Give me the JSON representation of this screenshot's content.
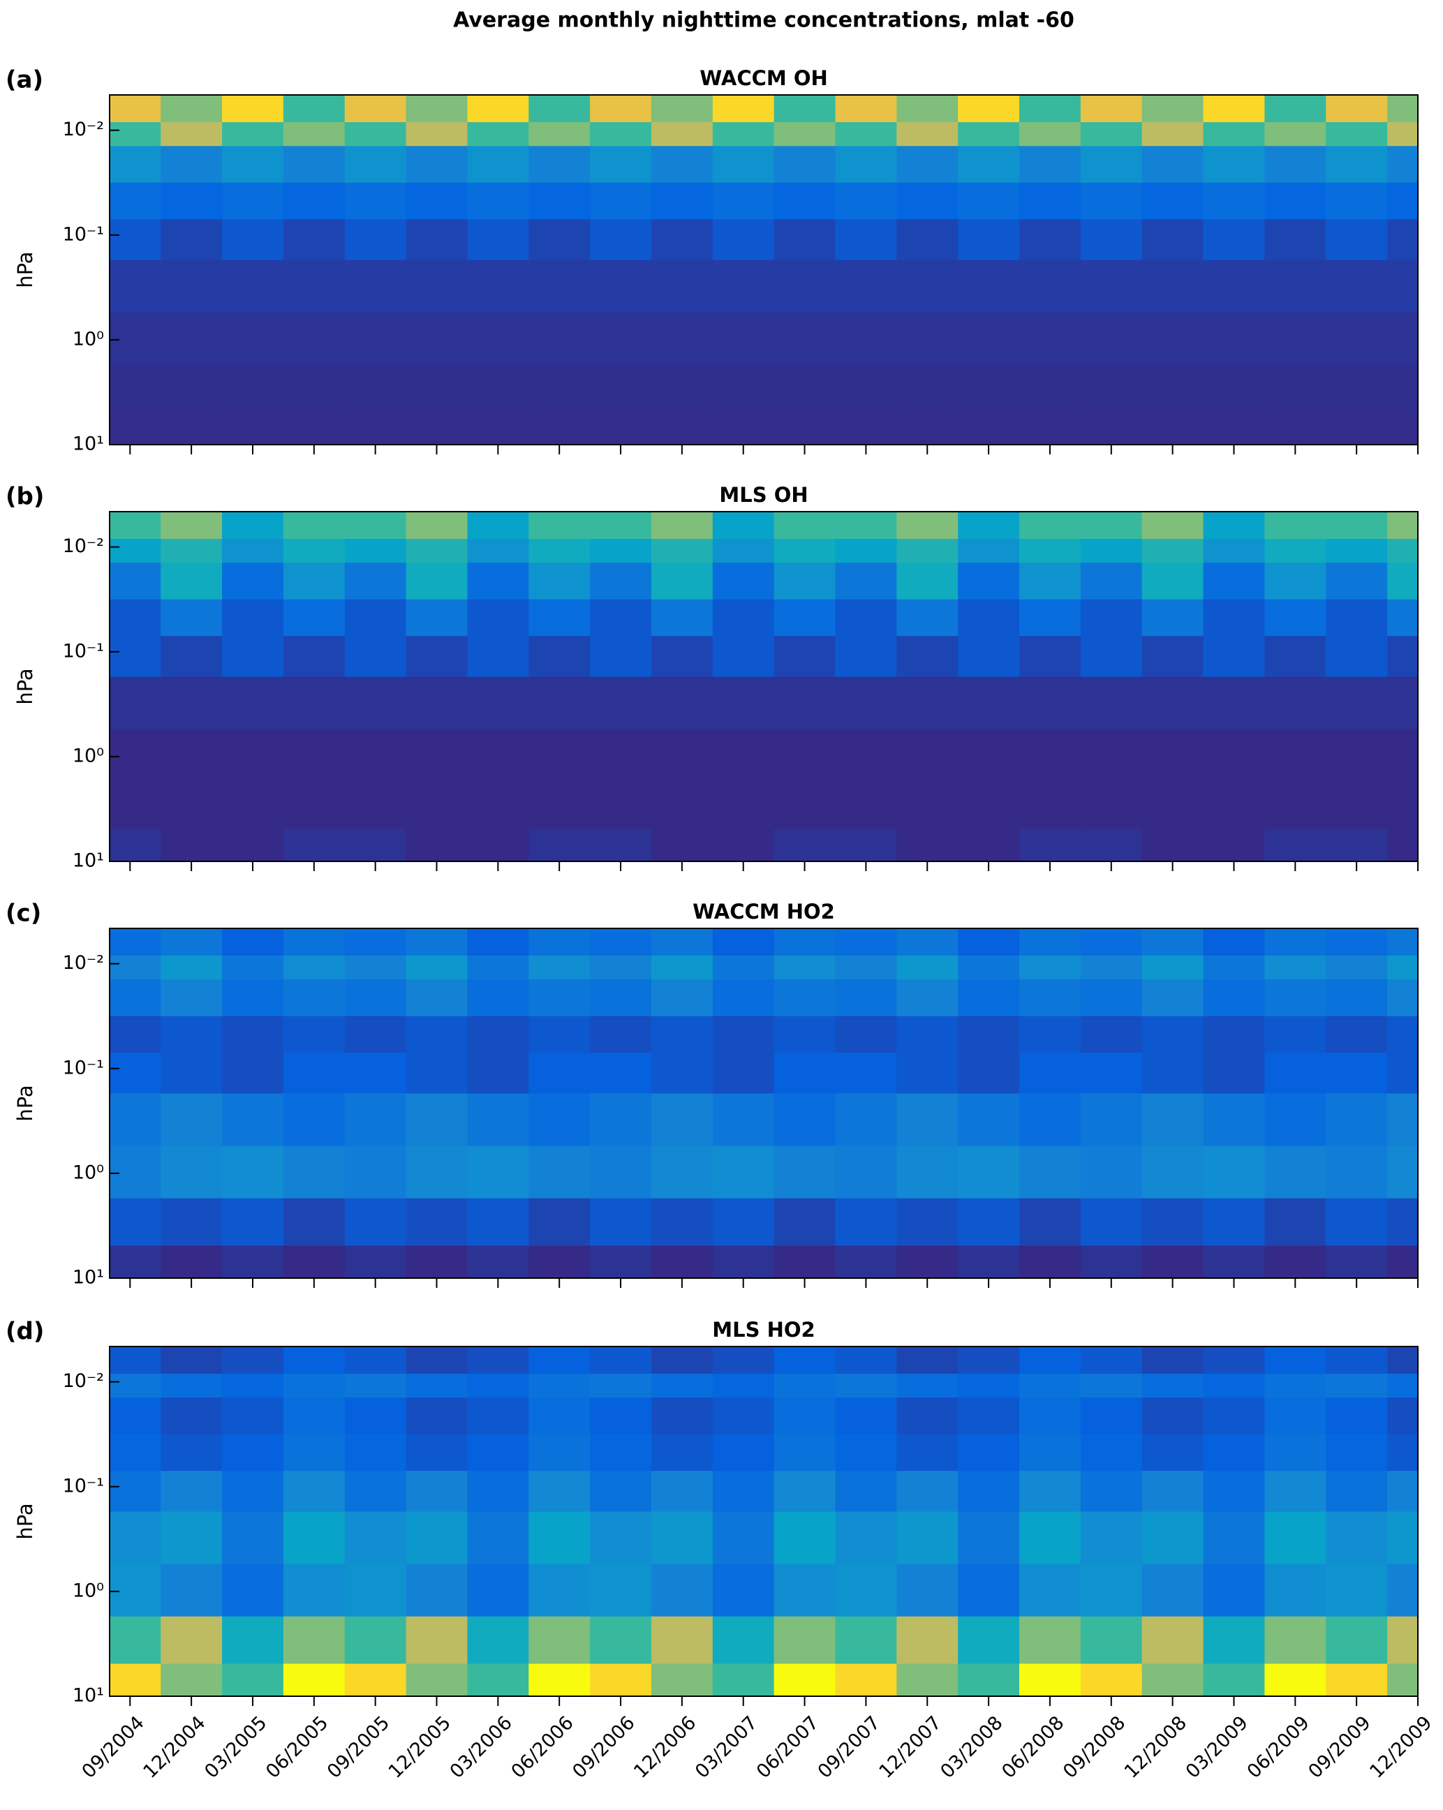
{
  "title": "Average monthly nighttime concentrations, mlat -60",
  "chart_data": [
    {
      "type": "contour",
      "label": "(a)",
      "title": "WACCM OH",
      "ylabel": "hPa",
      "x": [
        "09/2004",
        "12/2004",
        "03/2005",
        "06/2005",
        "09/2005",
        "12/2005",
        "03/2006",
        "06/2006",
        "09/2006",
        "12/2006",
        "03/2007",
        "06/2007",
        "09/2007",
        "12/2007",
        "03/2008",
        "06/2008",
        "09/2008",
        "12/2008",
        "03/2009",
        "06/2009",
        "09/2009",
        "12/2009"
      ],
      "y": [
        0.007,
        0.01,
        0.02,
        0.05,
        0.1,
        0.3,
        1,
        3,
        8
      ],
      "z": [
        [
          4,
          3,
          4.5,
          2.5,
          4,
          3,
          4.5,
          2.5,
          4,
          3,
          4.5,
          2.5,
          4,
          3,
          4.5,
          2.5,
          4,
          3,
          4.5,
          2.5,
          4,
          3
        ],
        [
          2.5,
          3.5,
          2.5,
          3,
          2.5,
          3.5,
          2.5,
          3,
          2.5,
          3.5,
          2.5,
          3,
          2.5,
          3.5,
          2.5,
          3,
          2.5,
          3.5,
          2.5,
          3,
          2.5,
          3.5
        ],
        [
          1.5,
          1.2,
          1.5,
          1.2,
          1.5,
          1.2,
          1.5,
          1.2,
          1.5,
          1.2,
          1.5,
          1.2,
          1.5,
          1.2,
          1.5,
          1.2,
          1.5,
          1.2,
          1.5,
          1.2,
          1.5,
          1.2
        ],
        [
          0.8,
          0.7,
          0.8,
          0.7,
          0.8,
          0.7,
          0.8,
          0.7,
          0.8,
          0.7,
          0.8,
          0.7,
          0.8,
          0.7,
          0.8,
          0.7,
          0.8,
          0.7,
          0.8,
          0.7,
          0.8,
          0.7
        ],
        [
          0.5,
          0.3,
          0.5,
          0.3,
          0.5,
          0.3,
          0.5,
          0.3,
          0.5,
          0.3,
          0.5,
          0.3,
          0.5,
          0.3,
          0.5,
          0.3,
          0.5,
          0.3,
          0.5,
          0.3,
          0.5,
          0.3
        ],
        [
          0.2,
          0.2,
          0.2,
          0.2,
          0.2,
          0.2,
          0.2,
          0.2,
          0.2,
          0.2,
          0.2,
          0.2,
          0.2,
          0.2,
          0.2,
          0.2,
          0.2,
          0.2,
          0.2,
          0.2,
          0.2,
          0.2
        ],
        [
          0.1,
          0.1,
          0.1,
          0.1,
          0.1,
          0.1,
          0.1,
          0.1,
          0.1,
          0.1,
          0.1,
          0.1,
          0.1,
          0.1,
          0.1,
          0.1,
          0.1,
          0.1,
          0.1,
          0.1,
          0.1,
          0.1
        ],
        [
          0.05,
          0.05,
          0.05,
          0.05,
          0.05,
          0.05,
          0.05,
          0.05,
          0.05,
          0.05,
          0.05,
          0.05,
          0.05,
          0.05,
          0.05,
          0.05,
          0.05,
          0.05,
          0.05,
          0.05,
          0.05,
          0.05
        ],
        [
          0.02,
          0.02,
          0.02,
          0.02,
          0.02,
          0.02,
          0.02,
          0.02,
          0.02,
          0.02,
          0.02,
          0.02,
          0.02,
          0.02,
          0.02,
          0.02,
          0.02,
          0.02,
          0.02,
          0.02,
          0.02,
          0.02
        ]
      ],
      "xlim": [
        "08/2004",
        "12/2009"
      ],
      "ylim": [
        0.0046,
        10
      ],
      "y_reversed": true,
      "yscale": "log",
      "yticks": [
        {
          "value": 0.01,
          "label": "10⁻²"
        },
        {
          "value": 0.1,
          "label": "10⁻¹"
        },
        {
          "value": 1,
          "label": "10⁰"
        },
        {
          "value": 10,
          "label": "10¹"
        }
      ],
      "xticks": [
        "09/2004",
        "12/2004",
        "03/2005",
        "06/2005",
        "09/2005",
        "12/2005",
        "03/2006",
        "06/2006",
        "09/2006",
        "12/2006",
        "03/2007",
        "06/2007",
        "09/2007",
        "12/2007",
        "03/2008",
        "06/2008",
        "09/2008",
        "12/2008",
        "03/2009",
        "06/2009",
        "09/2009",
        "12/2009"
      ],
      "xtick_labels": false,
      "clim": [
        0,
        5
      ],
      "colormap": "parula"
    },
    {
      "type": "contour",
      "label": "(b)",
      "title": "MLS OH",
      "ylabel": "hPa",
      "x": [
        "09/2004",
        "12/2004",
        "03/2005",
        "06/2005",
        "09/2005",
        "12/2005",
        "03/2006",
        "06/2006",
        "09/2006",
        "12/2006",
        "03/2007",
        "06/2007",
        "09/2007",
        "12/2007",
        "03/2008",
        "06/2008",
        "09/2008",
        "12/2008",
        "03/2009",
        "06/2009",
        "09/2009",
        "12/2009"
      ],
      "y": [
        0.007,
        0.01,
        0.02,
        0.05,
        0.1,
        0.3,
        1,
        3,
        8
      ],
      "z": [
        [
          2.5,
          3,
          1.8,
          2.5,
          2.5,
          3,
          1.8,
          2.5,
          2.5,
          3,
          1.8,
          2.5,
          2.5,
          3,
          1.8,
          2.5,
          2.5,
          3,
          1.8,
          2.5,
          2.5,
          3
        ],
        [
          1.8,
          2.2,
          1.5,
          2,
          1.8,
          2.2,
          1.5,
          2,
          1.8,
          2.2,
          1.5,
          2,
          1.8,
          2.2,
          1.5,
          2,
          1.8,
          2.2,
          1.5,
          2,
          1.8,
          2.2
        ],
        [
          1,
          2,
          0.8,
          1.5,
          1,
          2,
          0.8,
          1.5,
          1,
          2,
          0.8,
          1.5,
          1,
          2,
          0.8,
          1.5,
          1,
          2,
          0.8,
          1.5,
          1,
          2
        ],
        [
          0.5,
          1,
          0.5,
          0.8,
          0.5,
          1,
          0.5,
          0.8,
          0.5,
          1,
          0.5,
          0.8,
          0.5,
          1,
          0.5,
          0.8,
          0.5,
          1,
          0.5,
          0.8,
          0.5,
          1
        ],
        [
          0.5,
          0.3,
          0.5,
          0.3,
          0.5,
          0.3,
          0.5,
          0.3,
          0.5,
          0.3,
          0.5,
          0.3,
          0.5,
          0.3,
          0.5,
          0.3,
          0.5,
          0.3,
          0.5,
          0.3,
          0.5,
          0.3
        ],
        [
          0.1,
          0.1,
          0.1,
          0.1,
          0.1,
          0.1,
          0.1,
          0.1,
          0.1,
          0.1,
          0.1,
          0.1,
          0.1,
          0.1,
          0.1,
          0.1,
          0.1,
          0.1,
          0.1,
          0.1,
          0.1,
          0.1
        ],
        [
          0,
          0,
          0,
          0,
          0,
          0,
          0,
          0,
          0,
          0,
          0,
          0,
          0,
          0,
          0,
          0,
          0,
          0,
          0,
          0,
          0,
          0
        ],
        [
          0,
          0,
          0,
          0,
          0,
          0,
          0,
          0,
          0,
          0,
          0,
          0,
          0,
          0,
          0,
          0,
          0,
          0,
          0,
          0,
          0,
          0
        ],
        [
          0.1,
          0,
          0,
          0.1,
          0.1,
          0,
          0,
          0.1,
          0.1,
          0,
          0,
          0.1,
          0.1,
          0,
          0,
          0.1,
          0.1,
          0,
          0,
          0.1,
          0.1,
          0
        ]
      ],
      "xlim": [
        "08/2004",
        "12/2009"
      ],
      "ylim": [
        0.0046,
        10
      ],
      "y_reversed": true,
      "yscale": "log",
      "yticks": [
        {
          "value": 0.01,
          "label": "10⁻²"
        },
        {
          "value": 0.1,
          "label": "10⁻¹"
        },
        {
          "value": 1,
          "label": "10⁰"
        },
        {
          "value": 10,
          "label": "10¹"
        }
      ],
      "xticks": [
        "09/2004",
        "12/2004",
        "03/2005",
        "06/2005",
        "09/2005",
        "12/2005",
        "03/2006",
        "06/2006",
        "09/2006",
        "12/2006",
        "03/2007",
        "06/2007",
        "09/2007",
        "12/2007",
        "03/2008",
        "06/2008",
        "09/2008",
        "12/2008",
        "03/2009",
        "06/2009",
        "09/2009",
        "12/2009"
      ],
      "xtick_labels": false,
      "clim": [
        0,
        5
      ],
      "colormap": "parula"
    },
    {
      "type": "contour",
      "label": "(c)",
      "title": "WACCM HO2",
      "ylabel": "hPa",
      "x": [
        "09/2004",
        "12/2004",
        "03/2005",
        "06/2005",
        "09/2005",
        "12/2005",
        "03/2006",
        "06/2006",
        "09/2006",
        "12/2006",
        "03/2007",
        "06/2007",
        "09/2007",
        "12/2007",
        "03/2008",
        "06/2008",
        "09/2008",
        "12/2008",
        "03/2009",
        "06/2009",
        "09/2009",
        "12/2009"
      ],
      "y": [
        0.007,
        0.01,
        0.02,
        0.05,
        0.1,
        0.3,
        1,
        3,
        8
      ],
      "z": [
        [
          0.8,
          1,
          0.6,
          0.9,
          0.8,
          1,
          0.6,
          0.9,
          0.8,
          1,
          0.6,
          0.9,
          0.8,
          1,
          0.6,
          0.9,
          0.8,
          1,
          0.6,
          0.9,
          0.8,
          1
        ],
        [
          1.2,
          1.6,
          1,
          1.4,
          1.2,
          1.6,
          1,
          1.4,
          1.2,
          1.6,
          1,
          1.4,
          1.2,
          1.6,
          1,
          1.4,
          1.2,
          1.6,
          1,
          1.4,
          1.2,
          1.6
        ],
        [
          0.9,
          1.2,
          0.8,
          1,
          0.9,
          1.2,
          0.8,
          1,
          0.9,
          1.2,
          0.8,
          1,
          0.9,
          1.2,
          0.8,
          1,
          0.9,
          1.2,
          0.8,
          1,
          0.9,
          1.2
        ],
        [
          0.4,
          0.5,
          0.4,
          0.5,
          0.4,
          0.5,
          0.4,
          0.5,
          0.4,
          0.5,
          0.4,
          0.5,
          0.4,
          0.5,
          0.4,
          0.5,
          0.4,
          0.5,
          0.4,
          0.5,
          0.4,
          0.5
        ],
        [
          0.6,
          0.5,
          0.4,
          0.6,
          0.6,
          0.5,
          0.4,
          0.6,
          0.6,
          0.5,
          0.4,
          0.6,
          0.6,
          0.5,
          0.4,
          0.6,
          0.6,
          0.5,
          0.4,
          0.6,
          0.6,
          0.5
        ],
        [
          1,
          1.2,
          1,
          0.8,
          1,
          1.2,
          1,
          0.8,
          1,
          1.2,
          1,
          0.8,
          1,
          1.2,
          1,
          0.8,
          1,
          1.2,
          1,
          0.8,
          1,
          1.2
        ],
        [
          1.1,
          1.3,
          1.4,
          1.2,
          1.1,
          1.3,
          1.4,
          1.2,
          1.1,
          1.3,
          1.4,
          1.2,
          1.1,
          1.3,
          1.4,
          1.2,
          1.1,
          1.3,
          1.4,
          1.2,
          1.1,
          1.3
        ],
        [
          0.5,
          0.4,
          0.5,
          0.3,
          0.5,
          0.4,
          0.5,
          0.3,
          0.5,
          0.4,
          0.5,
          0.3,
          0.5,
          0.4,
          0.5,
          0.3,
          0.5,
          0.4,
          0.5,
          0.3,
          0.5,
          0.4
        ],
        [
          0.1,
          0,
          0.1,
          0,
          0.1,
          0,
          0.1,
          0,
          0.1,
          0,
          0.1,
          0,
          0.1,
          0,
          0.1,
          0,
          0.1,
          0,
          0.1,
          0,
          0.1,
          0
        ]
      ],
      "xlim": [
        "08/2004",
        "12/2009"
      ],
      "ylim": [
        0.0046,
        10
      ],
      "y_reversed": true,
      "yscale": "log",
      "yticks": [
        {
          "value": 0.01,
          "label": "10⁻²"
        },
        {
          "value": 0.1,
          "label": "10⁻¹"
        },
        {
          "value": 1,
          "label": "10⁰"
        },
        {
          "value": 10,
          "label": "10¹"
        }
      ],
      "xticks": [
        "09/2004",
        "12/2004",
        "03/2005",
        "06/2005",
        "09/2005",
        "12/2005",
        "03/2006",
        "06/2006",
        "09/2006",
        "12/2006",
        "03/2007",
        "06/2007",
        "09/2007",
        "12/2007",
        "03/2008",
        "06/2008",
        "09/2008",
        "12/2008",
        "03/2009",
        "06/2009",
        "09/2009",
        "12/2009"
      ],
      "xtick_labels": false,
      "clim": [
        0,
        5
      ],
      "colormap": "parula"
    },
    {
      "type": "contour",
      "label": "(d)",
      "title": "MLS HO2",
      "ylabel": "hPa",
      "x": [
        "09/2004",
        "12/2004",
        "03/2005",
        "06/2005",
        "09/2005",
        "12/2005",
        "03/2006",
        "06/2006",
        "09/2006",
        "12/2006",
        "03/2007",
        "06/2007",
        "09/2007",
        "12/2007",
        "03/2008",
        "06/2008",
        "09/2008",
        "12/2008",
        "03/2009",
        "06/2009",
        "09/2009",
        "12/2009"
      ],
      "y": [
        0.007,
        0.01,
        0.02,
        0.05,
        0.1,
        0.3,
        1,
        3,
        8
      ],
      "z": [
        [
          0.5,
          0.3,
          0.4,
          0.6,
          0.5,
          0.3,
          0.4,
          0.6,
          0.5,
          0.3,
          0.4,
          0.6,
          0.5,
          0.3,
          0.4,
          0.6,
          0.5,
          0.3,
          0.4,
          0.6,
          0.5,
          0.3
        ],
        [
          1,
          0.8,
          0.7,
          0.9,
          1,
          0.8,
          0.7,
          0.9,
          1,
          0.8,
          0.7,
          0.9,
          1,
          0.8,
          0.7,
          0.9,
          1,
          0.8,
          0.7,
          0.9,
          1,
          0.8
        ],
        [
          0.6,
          0.4,
          0.5,
          0.8,
          0.6,
          0.4,
          0.5,
          0.8,
          0.6,
          0.4,
          0.5,
          0.8,
          0.6,
          0.4,
          0.5,
          0.8,
          0.6,
          0.4,
          0.5,
          0.8,
          0.6,
          0.4
        ],
        [
          0.7,
          0.5,
          0.6,
          0.9,
          0.7,
          0.5,
          0.6,
          0.9,
          0.7,
          0.5,
          0.6,
          0.9,
          0.7,
          0.5,
          0.6,
          0.9,
          0.7,
          0.5,
          0.6,
          0.9,
          0.7,
          0.5
        ],
        [
          0.9,
          1.2,
          0.8,
          1.3,
          0.9,
          1.2,
          0.8,
          1.3,
          0.9,
          1.2,
          0.8,
          1.3,
          0.9,
          1.2,
          0.8,
          1.3,
          0.9,
          1.2,
          0.8,
          1.3,
          0.9,
          1.2
        ],
        [
          1.4,
          1.6,
          1,
          1.8,
          1.4,
          1.6,
          1,
          1.8,
          1.4,
          1.6,
          1,
          1.8,
          1.4,
          1.6,
          1,
          1.8,
          1.4,
          1.6,
          1,
          1.8,
          1.4,
          1.6
        ],
        [
          1.5,
          1.2,
          0.8,
          1.4,
          1.5,
          1.2,
          0.8,
          1.4,
          1.5,
          1.2,
          0.8,
          1.4,
          1.5,
          1.2,
          0.8,
          1.4,
          1.5,
          1.2,
          0.8,
          1.4,
          1.5,
          1.2
        ],
        [
          2.5,
          3.5,
          2,
          3,
          2.5,
          3.5,
          2,
          3,
          2.5,
          3.5,
          2,
          3,
          2.5,
          3.5,
          2,
          3,
          2.5,
          3.5,
          2,
          3,
          2.5,
          3.5
        ],
        [
          4.5,
          3,
          2.5,
          5,
          4.5,
          3,
          2.5,
          5,
          4.5,
          3,
          2.5,
          5,
          4.5,
          3,
          2.5,
          5,
          4.5,
          3,
          2.5,
          5,
          4.5,
          3
        ]
      ],
      "xlim": [
        "08/2004",
        "12/2009"
      ],
      "ylim": [
        0.0046,
        10
      ],
      "y_reversed": true,
      "yscale": "log",
      "yticks": [
        {
          "value": 0.01,
          "label": "10⁻²"
        },
        {
          "value": 0.1,
          "label": "10⁻¹"
        },
        {
          "value": 1,
          "label": "10⁰"
        },
        {
          "value": 10,
          "label": "10¹"
        }
      ],
      "xticks": [
        "09/2004",
        "12/2004",
        "03/2005",
        "06/2005",
        "09/2005",
        "12/2005",
        "03/2006",
        "06/2006",
        "09/2006",
        "12/2006",
        "03/2007",
        "06/2007",
        "09/2007",
        "12/2007",
        "03/2008",
        "06/2008",
        "09/2008",
        "12/2008",
        "03/2009",
        "06/2009",
        "09/2009",
        "12/2009"
      ],
      "xtick_labels": true,
      "clim": [
        0,
        5
      ],
      "colormap": "parula"
    }
  ]
}
